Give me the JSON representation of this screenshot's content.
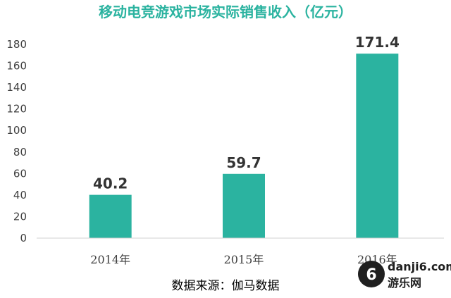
{
  "chart_data": {
    "type": "bar",
    "title": "移动电竞游戏市场实际销售收入（亿元）",
    "categories": [
      "2014年",
      "2015年",
      "2016年"
    ],
    "values": [
      40.2,
      59.7,
      171.4
    ],
    "value_labels": [
      "40.2",
      "59.7",
      "171.4"
    ],
    "y_ticks": [
      0,
      20,
      40,
      60,
      80,
      100,
      120,
      140,
      160,
      180
    ],
    "ylim": [
      0,
      180
    ],
    "xlabel": "",
    "ylabel": "",
    "grid": false,
    "legend": "none",
    "source": "数据来源：伽马数据"
  },
  "colors": {
    "bar": "#2bb3a0",
    "title": "#2bb3a0",
    "axis_text": "#404040",
    "value_text": "#333333",
    "axis_line": "#d0d0d0"
  },
  "watermark": {
    "icon": "number-6-logo-icon",
    "text": "danji6.com",
    "subtext": "游乐网"
  }
}
